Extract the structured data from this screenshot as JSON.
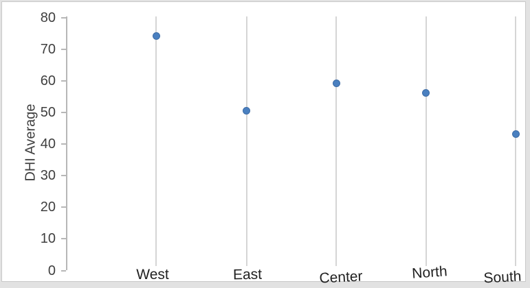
{
  "chart_data": {
    "type": "scatter",
    "title": "",
    "ylabel": "DHI Average",
    "xlabel": "",
    "categories": [
      "West",
      "East",
      "Center",
      "North",
      "South"
    ],
    "values": [
      74.3,
      50.5,
      59.2,
      56.3,
      43.1
    ],
    "ylim": [
      0,
      80
    ],
    "yticks": [
      0,
      10,
      20,
      30,
      40,
      50,
      60,
      70,
      80
    ],
    "grid": "vertical-only",
    "legend": "none",
    "marker_color": "#4a80c0",
    "gridline_color": "#d5d5d5",
    "axis_color": "#b7b7b7",
    "tick_text_color": "#3f3f3f",
    "category_text_color": "#212121",
    "background_color": "#ffffff"
  }
}
